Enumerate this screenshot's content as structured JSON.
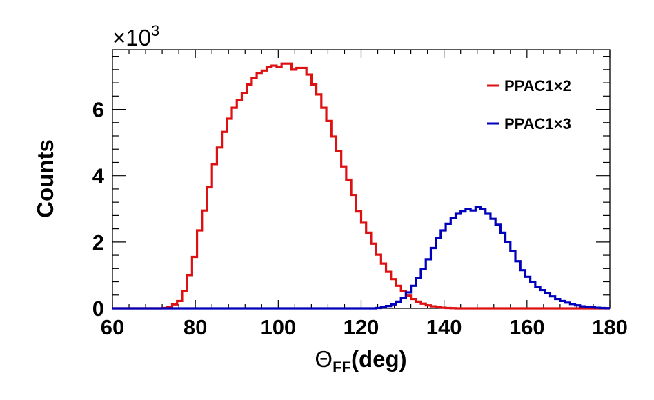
{
  "chart_data": {
    "type": "line",
    "step": true,
    "xlim": [
      60,
      180
    ],
    "ylim": [
      0,
      7.8
    ],
    "y_multiplier": {
      "base": "×10",
      "exponent": "3"
    },
    "x_ticks": [
      60,
      80,
      100,
      120,
      140,
      160,
      180
    ],
    "y_ticks": [
      0,
      2,
      4,
      6
    ],
    "xlabel": {
      "main": "Θ",
      "sub": "FF",
      "unit": "(deg)"
    },
    "ylabel": "Counts",
    "legend_position": "top-right",
    "bin_start": 60,
    "bin_width": 1.2,
    "series": [
      {
        "name": "PPAC1×2",
        "color": "#dd1111",
        "values": [
          0,
          0,
          0,
          0,
          0,
          0,
          0,
          0,
          0,
          0,
          0.01,
          0.03,
          0.12,
          0.22,
          0.52,
          1.0,
          1.55,
          2.35,
          2.95,
          3.65,
          4.35,
          4.85,
          5.32,
          5.72,
          6.05,
          6.28,
          6.48,
          6.75,
          6.95,
          7.08,
          7.17,
          7.28,
          7.32,
          7.28,
          7.38,
          7.38,
          7.2,
          7.25,
          7.25,
          7.05,
          6.75,
          6.45,
          6.05,
          5.65,
          5.18,
          4.75,
          4.28,
          3.88,
          3.42,
          2.92,
          2.58,
          2.28,
          1.95,
          1.62,
          1.35,
          1.1,
          0.88,
          0.68,
          0.52,
          0.38,
          0.28,
          0.2,
          0.14,
          0.09,
          0.06,
          0.04,
          0.02,
          0.01,
          0.005,
          0,
          0,
          0,
          0,
          0,
          0,
          0,
          0,
          0,
          0,
          0,
          0,
          0,
          0,
          0,
          0,
          0,
          0,
          0,
          0,
          0,
          0,
          0,
          0,
          0,
          0,
          0,
          0,
          0,
          0,
          0
        ]
      },
      {
        "name": "PPAC1×3",
        "color": "#0000bb",
        "values": [
          0,
          0,
          0,
          0,
          0,
          0,
          0,
          0,
          0,
          0,
          0,
          0,
          0,
          0,
          0,
          0,
          0,
          0,
          0,
          0,
          0,
          0,
          0,
          0,
          0,
          0,
          0,
          0,
          0,
          0,
          0,
          0,
          0,
          0,
          0,
          0,
          0,
          0,
          0,
          0,
          0,
          0,
          0,
          0,
          0,
          0,
          0,
          0,
          0,
          0,
          0,
          0,
          0,
          0.01,
          0.03,
          0.07,
          0.12,
          0.2,
          0.32,
          0.48,
          0.68,
          0.92,
          1.18,
          1.48,
          1.82,
          2.12,
          2.35,
          2.55,
          2.72,
          2.85,
          2.92,
          3.0,
          2.95,
          3.05,
          3.0,
          2.85,
          2.7,
          2.52,
          2.28,
          2.0,
          1.72,
          1.42,
          1.15,
          0.95,
          0.8,
          0.65,
          0.55,
          0.45,
          0.36,
          0.28,
          0.22,
          0.17,
          0.13,
          0.09,
          0.06,
          0.04,
          0.03,
          0.02,
          0.01,
          0.005
        ]
      }
    ]
  }
}
